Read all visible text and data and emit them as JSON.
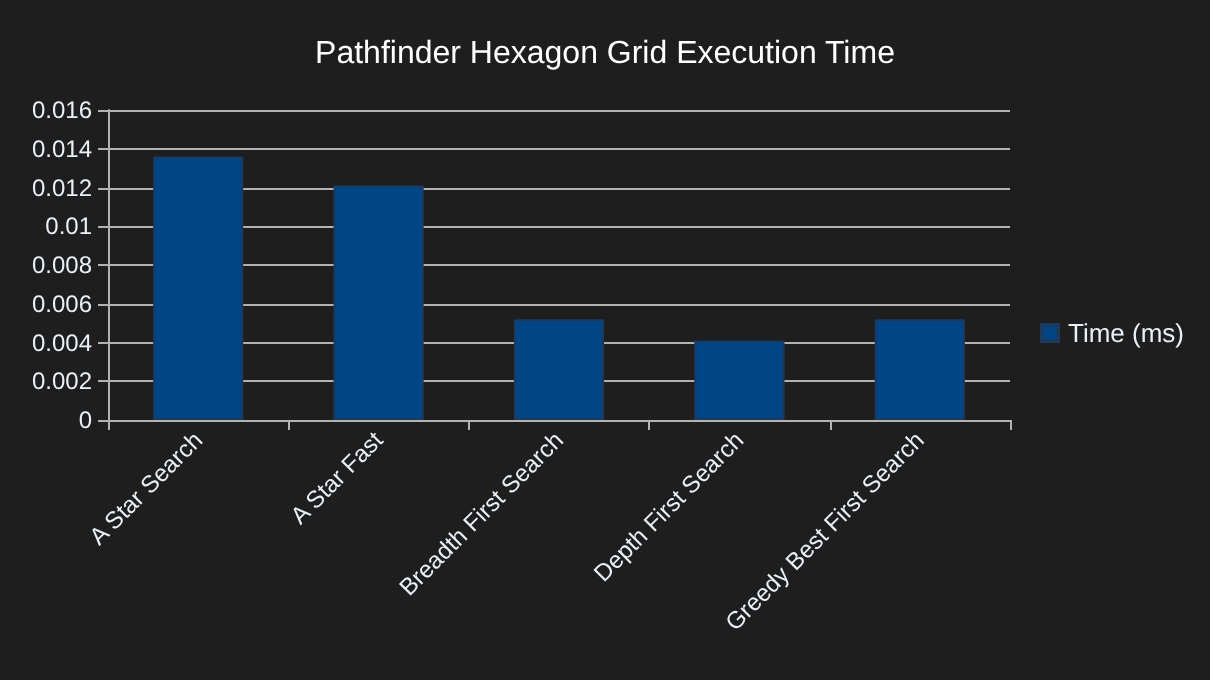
{
  "chart_data": {
    "type": "bar",
    "title": "Pathfinder Hexagon Grid Execution Time",
    "categories": [
      "A Star Search",
      "A Star Fast",
      "Breadth First Search",
      "Depth First Search",
      "Greedy Best First Search"
    ],
    "series": [
      {
        "name": "Time (ms)",
        "color": "#004586",
        "values": [
          0.0136,
          0.0121,
          0.0052,
          0.0041,
          0.0052
        ]
      }
    ],
    "ylim": [
      0,
      0.016
    ],
    "yticks": [
      0,
      0.002,
      0.004,
      0.006,
      0.008,
      0.01,
      0.012,
      0.014,
      0.016
    ],
    "grid": "y",
    "legend": "right"
  }
}
